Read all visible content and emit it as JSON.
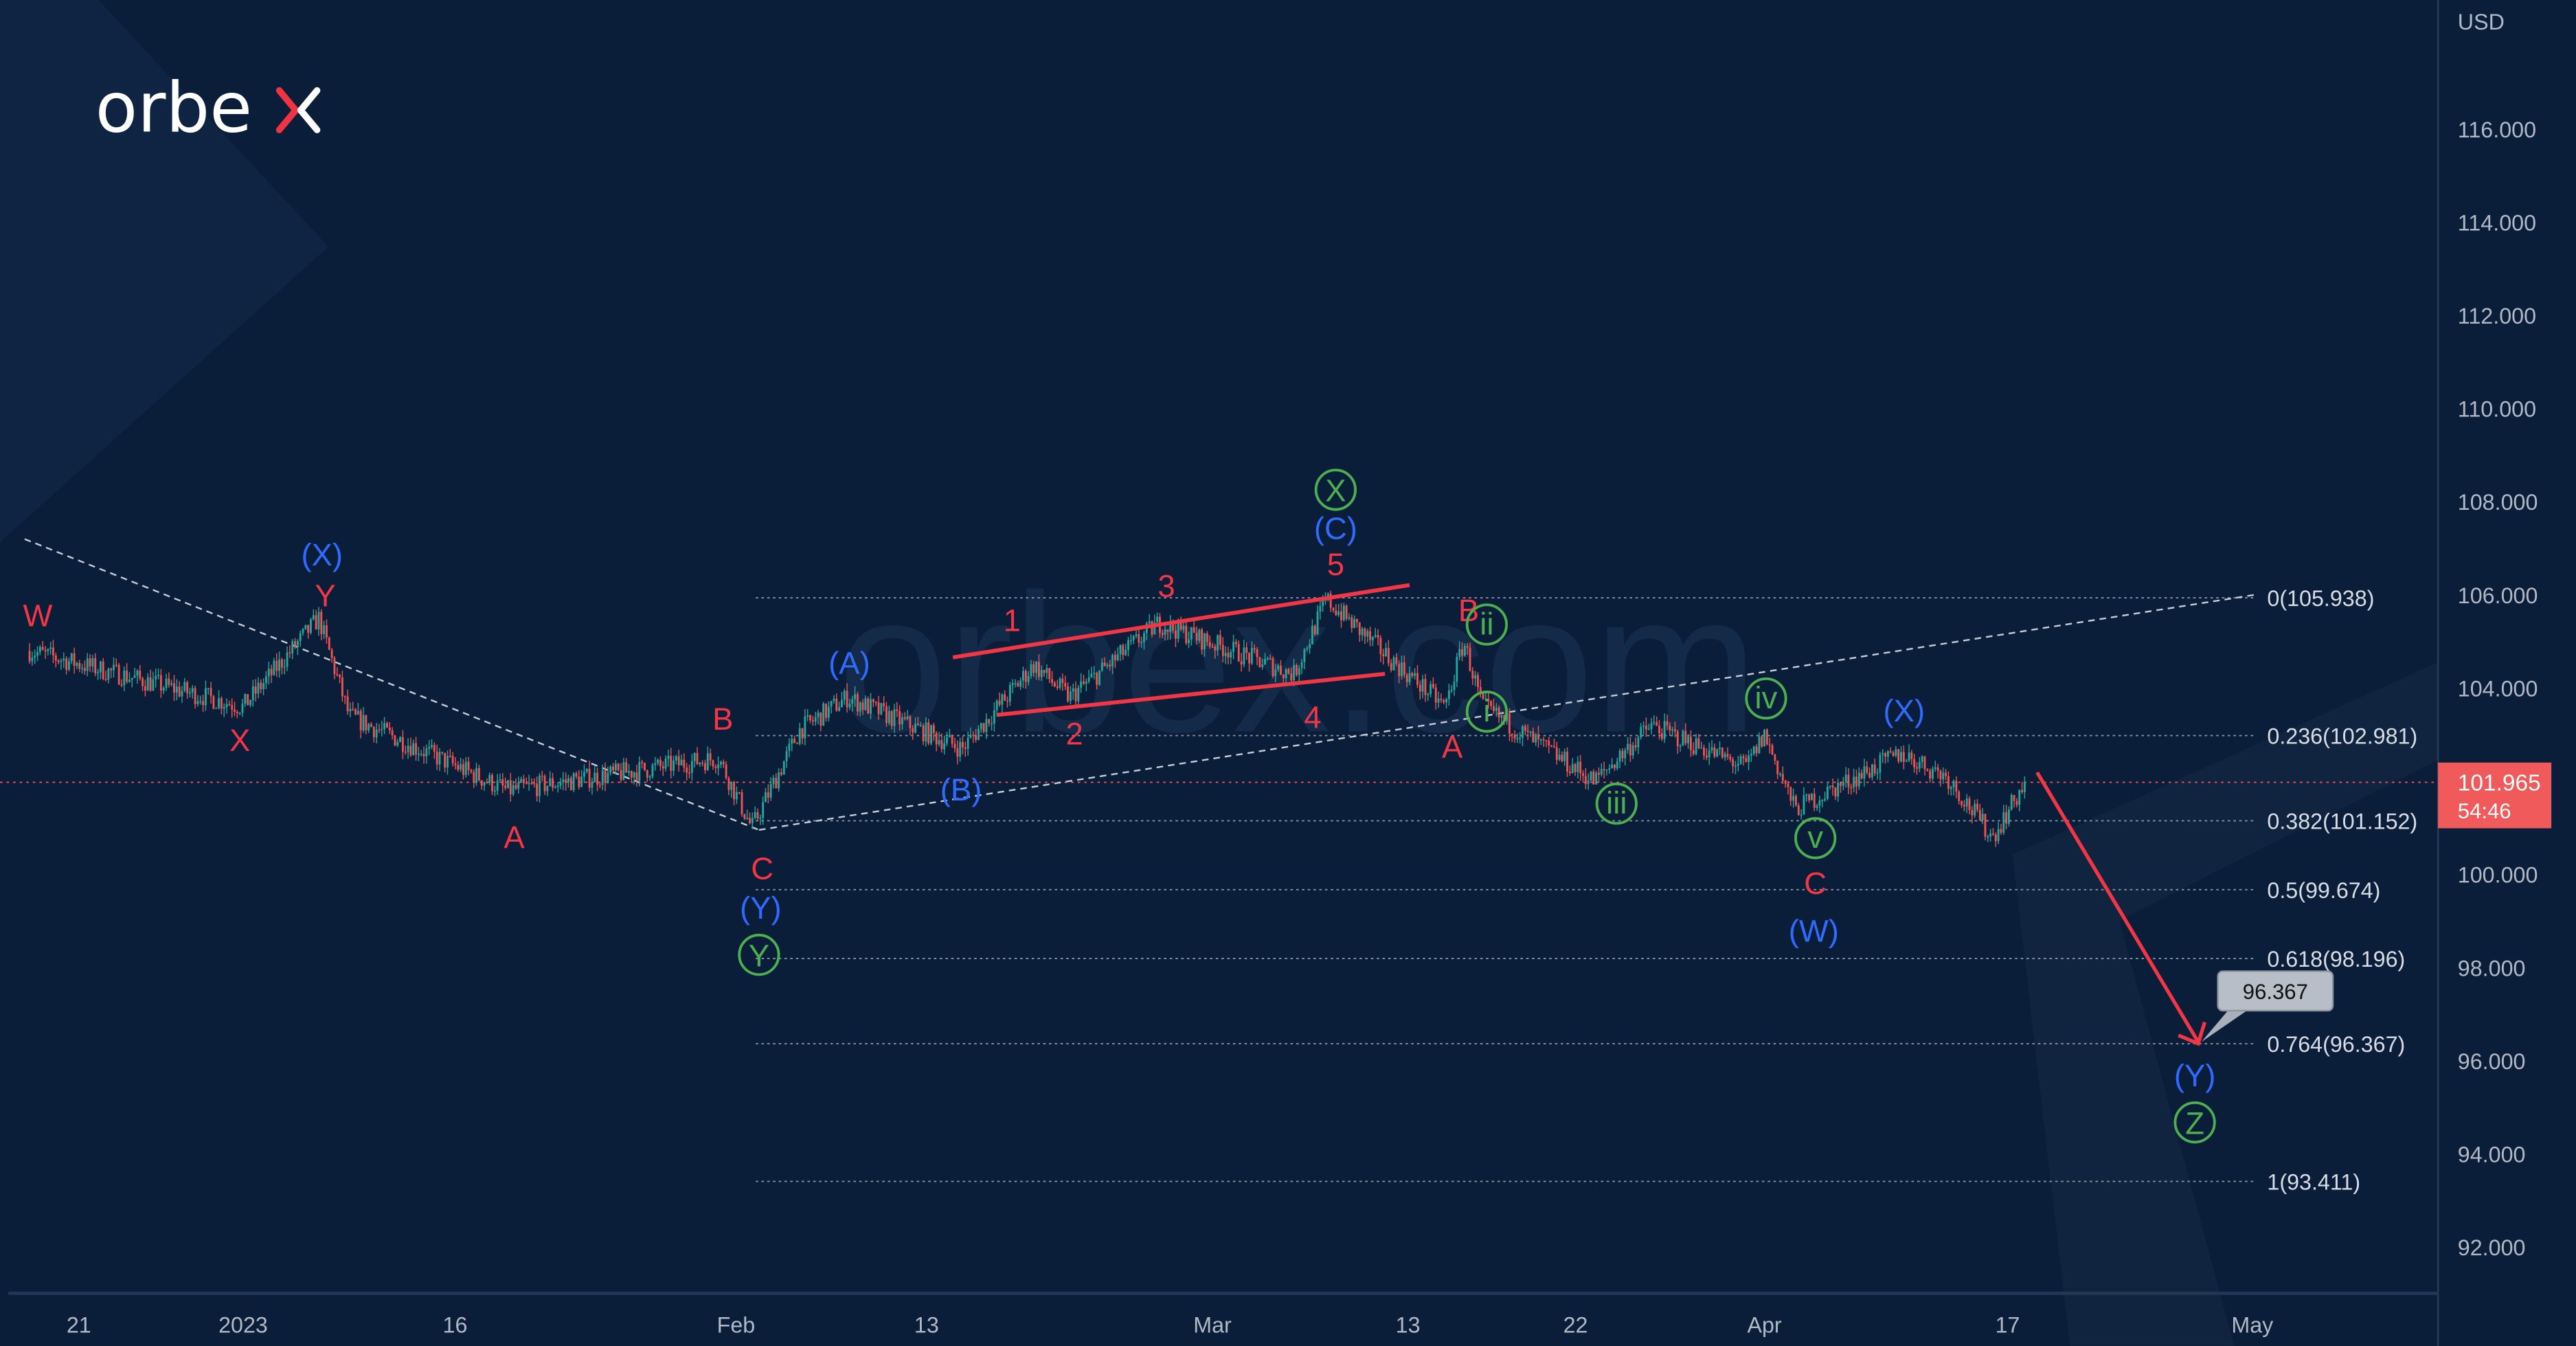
{
  "brand": {
    "logo_text": "orbex",
    "watermark": "orbex.com"
  },
  "price_axis": {
    "currency": "USD",
    "ticks": [
      "116.000",
      "114.000",
      "112.000",
      "110.000",
      "108.000",
      "106.000",
      "104.000",
      "100.000",
      "98.000",
      "96.000",
      "94.000",
      "92.000"
    ],
    "current_price": "101.965",
    "countdown": "54:46"
  },
  "time_axis": {
    "ticks": [
      "21",
      "2023",
      "16",
      "Feb",
      "13",
      "Mar",
      "13",
      "22",
      "Apr",
      "17",
      "May"
    ]
  },
  "fibonacci": [
    {
      "label": "0(105.938)",
      "price": 105.938
    },
    {
      "label": "0.236(102.981)",
      "price": 102.981
    },
    {
      "label": "0.382(101.152)",
      "price": 101.152
    },
    {
      "label": "0.5(99.674)",
      "price": 99.674
    },
    {
      "label": "0.618(98.196)",
      "price": 98.196
    },
    {
      "label": "0.764(96.367)",
      "price": 96.367
    },
    {
      "label": "1(93.411)",
      "price": 93.411
    }
  ],
  "target_callout": "96.367",
  "waves": [
    "W",
    "X",
    "Y",
    "(X)",
    "A",
    "B",
    "C",
    "(Y)",
    "Y",
    "(A)",
    "(B)",
    "1",
    "2",
    "3",
    "4",
    "5",
    "(C)",
    "X",
    "B",
    "ii",
    "i",
    "A",
    "iii",
    "iv",
    "v",
    "C",
    "(W)",
    "(X)",
    "(Y)",
    "Z"
  ],
  "colors": {
    "up": "#26a69a",
    "down": "#ef5350",
    "red": "#f23645",
    "blue": "#2f6bff",
    "green": "#4caf50",
    "badge": "#f05a5a"
  },
  "chart_data": {
    "type": "candlestick",
    "title": "",
    "ylabel": "USD",
    "ylim": [
      90.8,
      117.5
    ],
    "x_range": [
      "2022-12-17",
      "2023-05-03"
    ],
    "grid": false,
    "price_path": [
      [
        "2022-12-17",
        104.8
      ],
      [
        "2023-01-02",
        103.6
      ],
      [
        "2023-01-07",
        105.5
      ],
      [
        "2023-01-09",
        103.4
      ],
      [
        "2023-01-19",
        101.8
      ],
      [
        "2023-01-31",
        102.5
      ],
      [
        "2023-02-02",
        101.0
      ],
      [
        "2023-02-05",
        103.1
      ],
      [
        "2023-02-08",
        103.8
      ],
      [
        "2023-02-15",
        102.7
      ],
      [
        "2023-02-19",
        104.5
      ],
      [
        "2023-02-21",
        103.8
      ],
      [
        "2023-02-26",
        105.4
      ],
      [
        "2023-03-06",
        104.3
      ],
      [
        "2023-03-08",
        105.9
      ],
      [
        "2023-03-12",
        104.6
      ],
      [
        "2023-03-15",
        103.6
      ],
      [
        "2023-03-16",
        105.0
      ],
      [
        "2023-03-17",
        103.6
      ],
      [
        "2023-03-23",
        102.0
      ],
      [
        "2023-03-26",
        103.2
      ],
      [
        "2023-03-31",
        102.3
      ],
      [
        "2023-04-01",
        103.0
      ],
      [
        "2023-04-03",
        101.4
      ],
      [
        "2023-04-10",
        102.6
      ],
      [
        "2023-04-13",
        102.1
      ],
      [
        "2023-04-16",
        100.8
      ],
      [
        "2023-04-18",
        101.965
      ]
    ],
    "projection": {
      "from": [
        "2023-04-18",
        101.965
      ],
      "to": [
        "2023-04-28",
        96.367
      ]
    }
  }
}
